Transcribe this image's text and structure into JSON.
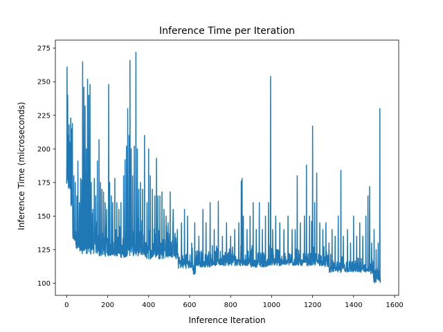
{
  "chart_data": {
    "type": "line",
    "title": "Inference Time per Iteration",
    "xlabel": "Inference Iteration",
    "ylabel": "Inference Time (microseconds)",
    "xlim": [
      -55,
      1620
    ],
    "ylim": [
      91,
      281
    ],
    "xticks": [
      0,
      200,
      400,
      600,
      800,
      1000,
      1200,
      1400,
      1600
    ],
    "yticks": [
      100,
      125,
      150,
      175,
      200,
      225,
      250,
      275
    ],
    "grid": false,
    "legend": "none",
    "series": [
      {
        "color": "#1f77b4",
        "x_start": 0,
        "x_end": 1530,
        "baseline_segments": [
          [
            0,
            165,
            205
          ],
          [
            20,
            155,
            180
          ],
          [
            30,
            132,
            150
          ],
          [
            45,
            122,
            145
          ],
          [
            100,
            121,
            150
          ],
          [
            150,
            120,
            145
          ],
          [
            200,
            120,
            142
          ],
          [
            250,
            119,
            140
          ],
          [
            290,
            120,
            150
          ],
          [
            320,
            120,
            145
          ],
          [
            380,
            118,
            140
          ],
          [
            420,
            118,
            150
          ],
          [
            480,
            119,
            145
          ],
          [
            530,
            117,
            135
          ],
          [
            545,
            111,
            128
          ],
          [
            600,
            111,
            125
          ],
          [
            615,
            106,
            125
          ],
          [
            630,
            112,
            125
          ],
          [
            700,
            113,
            128
          ],
          [
            800,
            113,
            128
          ],
          [
            900,
            112,
            127
          ],
          [
            1000,
            113,
            126
          ],
          [
            1100,
            113,
            126
          ],
          [
            1200,
            113,
            126
          ],
          [
            1260,
            112,
            125
          ],
          [
            1280,
            108,
            120
          ],
          [
            1400,
            108,
            118
          ],
          [
            1480,
            107,
            118
          ],
          [
            1495,
            100,
            115
          ],
          [
            1530,
            100,
            112
          ]
        ],
        "spikes": [
          [
            2,
            261
          ],
          [
            5,
            240
          ],
          [
            8,
            210
          ],
          [
            12,
            218
          ],
          [
            16,
            205
          ],
          [
            20,
            223
          ],
          [
            25,
            215
          ],
          [
            28,
            219
          ],
          [
            35,
            180
          ],
          [
            42,
            175
          ],
          [
            50,
            165
          ],
          [
            55,
            191
          ],
          [
            62,
            160
          ],
          [
            68,
            178
          ],
          [
            74,
            177
          ],
          [
            78,
            265
          ],
          [
            84,
            246
          ],
          [
            90,
            232
          ],
          [
            96,
            200
          ],
          [
            102,
            252
          ],
          [
            108,
            240
          ],
          [
            114,
            248
          ],
          [
            120,
            175
          ],
          [
            128,
            155
          ],
          [
            135,
            178
          ],
          [
            142,
            165
          ],
          [
            150,
            191
          ],
          [
            158,
            207
          ],
          [
            165,
            175
          ],
          [
            172,
            170
          ],
          [
            180,
            168
          ],
          [
            188,
            160
          ],
          [
            195,
            155
          ],
          [
            205,
            248
          ],
          [
            210,
            175
          ],
          [
            218,
            165
          ],
          [
            225,
            160
          ],
          [
            235,
            178
          ],
          [
            245,
            160
          ],
          [
            255,
            155
          ],
          [
            265,
            160
          ],
          [
            278,
            180
          ],
          [
            285,
            192
          ],
          [
            292,
            202
          ],
          [
            298,
            230
          ],
          [
            305,
            210
          ],
          [
            309,
            266
          ],
          [
            315,
            200
          ],
          [
            322,
            180
          ],
          [
            330,
            202
          ],
          [
            338,
            272
          ],
          [
            345,
            200
          ],
          [
            352,
            170
          ],
          [
            360,
            175
          ],
          [
            370,
            170
          ],
          [
            380,
            210
          ],
          [
            392,
            160
          ],
          [
            400,
            200
          ],
          [
            408,
            180
          ],
          [
            418,
            170
          ],
          [
            430,
            165
          ],
          [
            438,
            193
          ],
          [
            445,
            165
          ],
          [
            455,
            165
          ],
          [
            465,
            168
          ],
          [
            475,
            155
          ],
          [
            485,
            150
          ],
          [
            495,
            145
          ],
          [
            505,
            168
          ],
          [
            520,
            155
          ],
          [
            540,
            140
          ],
          [
            560,
            145
          ],
          [
            575,
            155
          ],
          [
            590,
            150
          ],
          [
            610,
            130
          ],
          [
            625,
            145
          ],
          [
            645,
            135
          ],
          [
            665,
            155
          ],
          [
            680,
            145
          ],
          [
            700,
            160
          ],
          [
            720,
            140
          ],
          [
            740,
            161
          ],
          [
            760,
            135
          ],
          [
            780,
            145
          ],
          [
            800,
            135
          ],
          [
            820,
            140
          ],
          [
            840,
            145
          ],
          [
            852,
            176
          ],
          [
            856,
            178
          ],
          [
            862,
            150
          ],
          [
            880,
            140
          ],
          [
            895,
            150
          ],
          [
            910,
            160
          ],
          [
            925,
            140
          ],
          [
            940,
            160
          ],
          [
            955,
            140
          ],
          [
            970,
            150
          ],
          [
            985,
            160
          ],
          [
            995,
            254
          ],
          [
            1005,
            140
          ],
          [
            1020,
            150
          ],
          [
            1040,
            145
          ],
          [
            1060,
            140
          ],
          [
            1080,
            150
          ],
          [
            1100,
            140
          ],
          [
            1115,
            140
          ],
          [
            1125,
            180
          ],
          [
            1140,
            145
          ],
          [
            1160,
            150
          ],
          [
            1170,
            188
          ],
          [
            1185,
            150
          ],
          [
            1195,
            146
          ],
          [
            1200,
            217
          ],
          [
            1210,
            160
          ],
          [
            1220,
            182
          ],
          [
            1235,
            145
          ],
          [
            1250,
            140
          ],
          [
            1265,
            145
          ],
          [
            1280,
            130
          ],
          [
            1295,
            140
          ],
          [
            1310,
            135
          ],
          [
            1325,
            150
          ],
          [
            1338,
            184
          ],
          [
            1350,
            135
          ],
          [
            1370,
            140
          ],
          [
            1385,
            130
          ],
          [
            1400,
            150
          ],
          [
            1415,
            135
          ],
          [
            1430,
            145
          ],
          [
            1445,
            135
          ],
          [
            1460,
            150
          ],
          [
            1470,
            165
          ],
          [
            1478,
            172
          ],
          [
            1488,
            130
          ],
          [
            1500,
            140
          ],
          [
            1510,
            125
          ],
          [
            1520,
            130
          ],
          [
            1528,
            230
          ]
        ]
      }
    ]
  }
}
